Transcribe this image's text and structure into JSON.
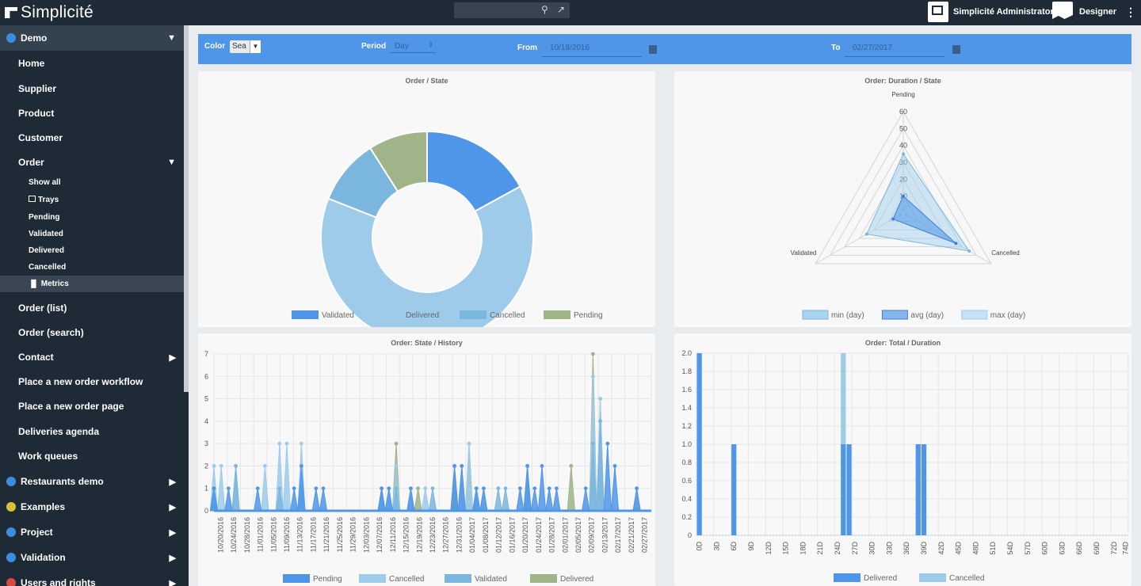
{
  "app": {
    "title": "Simplicité"
  },
  "topbar": {
    "search_placeholder": "",
    "user_name": "Simplicité Administrator",
    "role": "Designer"
  },
  "sidebar": {
    "module": "Demo",
    "items": [
      {
        "label": "Home"
      },
      {
        "label": "Supplier"
      },
      {
        "label": "Product"
      },
      {
        "label": "Customer"
      },
      {
        "label": "Order"
      }
    ],
    "order_sub": [
      {
        "label": "Show all"
      },
      {
        "label": "Trays"
      },
      {
        "label": "Pending"
      },
      {
        "label": "Validated"
      },
      {
        "label": "Delivered"
      },
      {
        "label": "Cancelled"
      },
      {
        "label": "Metrics"
      }
    ],
    "items2": [
      {
        "label": "Order (list)"
      },
      {
        "label": "Order (search)"
      },
      {
        "label": "Contact"
      },
      {
        "label": "Place a new order workflow"
      },
      {
        "label": "Place a new order page"
      },
      {
        "label": "Deliveries agenda"
      },
      {
        "label": "Work queues"
      }
    ],
    "modules": [
      {
        "label": "Restaurants demo",
        "icon": "globe-icon",
        "color": "#3a8fe0"
      },
      {
        "label": "Examples",
        "icon": "flask-icon",
        "color": "#d8c23a"
      },
      {
        "label": "Project",
        "icon": "shield-icon",
        "color": "#3a8fe0"
      },
      {
        "label": "Validation",
        "icon": "checklist-icon",
        "color": "#3a8fe0"
      },
      {
        "label": "Users and rights",
        "icon": "users-icon",
        "color": "#d84a3a"
      }
    ]
  },
  "filters": {
    "color_label": "Color",
    "color_value": "Sea",
    "period_label": "Period",
    "period_value": "Day",
    "from_label": "From",
    "from_value": "10/18/2016",
    "to_label": "To",
    "to_value": "02/27/2017"
  },
  "colors": {
    "validated": "#4f96e8",
    "delivered": "#9ecbea",
    "cancelled": "#7bb6de",
    "pending": "#a0b48a",
    "accent": "#4f96e8"
  },
  "chart_data": [
    {
      "type": "pie",
      "title": "Order / State",
      "categories": [
        "Validated",
        "Delivered",
        "Cancelled",
        "Pending"
      ],
      "values": [
        17,
        64,
        10,
        9
      ]
    },
    {
      "type": "radar",
      "title": "Order: Duration / State",
      "categories": [
        "Pending",
        "Cancelled",
        "Validated"
      ],
      "rlim": [
        0,
        60
      ],
      "ticks": [
        "10",
        "20",
        "30",
        "40",
        "50",
        "60"
      ],
      "series": [
        {
          "name": "min (day)",
          "values": [
            2,
            2,
            2
          ]
        },
        {
          "name": "avg (day)",
          "values": [
            10,
            36,
            7
          ]
        },
        {
          "name": "max (day)",
          "values": [
            35,
            45,
            25
          ]
        }
      ]
    },
    {
      "type": "area",
      "title": "Order: State / History",
      "ylim": [
        0,
        7
      ],
      "yticks": [
        "0",
        "1",
        "2",
        "3",
        "4",
        "5",
        "6",
        "7"
      ],
      "xticks": [
        "10/20/2016",
        "10/24/2016",
        "10/28/2016",
        "11/01/2016",
        "11/05/2016",
        "11/09/2016",
        "11/13/2016",
        "11/17/2016",
        "11/21/2016",
        "11/25/2016",
        "11/29/2016",
        "12/03/2016",
        "12/07/2016",
        "12/11/2016",
        "12/15/2016",
        "12/19/2016",
        "12/23/2016",
        "12/27/2016",
        "12/31/2016",
        "01/04/2017",
        "01/08/2017",
        "01/12/2017",
        "01/16/2017",
        "01/20/2017",
        "01/24/2017",
        "01/28/2017",
        "02/01/2017",
        "02/05/2017",
        "02/09/2017",
        "02/13/2017",
        "02/17/2017",
        "02/21/2017",
        "02/27/2017"
      ],
      "series": [
        {
          "name": "Pending",
          "points": [
            [
              0,
              1
            ],
            [
              2,
              1
            ],
            [
              6,
              1
            ],
            [
              11,
              1
            ],
            [
              12,
              2
            ],
            [
              14,
              1
            ],
            [
              15,
              1
            ],
            [
              23,
              1
            ],
            [
              24,
              1
            ],
            [
              27,
              1
            ],
            [
              33,
              2
            ],
            [
              34,
              2
            ],
            [
              36,
              1
            ],
            [
              37,
              1
            ],
            [
              42,
              1
            ],
            [
              43,
              2
            ],
            [
              44,
              1
            ],
            [
              45,
              2
            ],
            [
              46,
              1
            ],
            [
              47,
              1
            ],
            [
              51,
              1
            ],
            [
              54,
              3
            ],
            [
              55,
              2
            ],
            [
              58,
              1
            ]
          ]
        },
        {
          "name": "Cancelled",
          "points": [
            [
              0,
              2
            ],
            [
              1,
              2
            ],
            [
              3,
              2
            ],
            [
              7,
              2
            ],
            [
              9,
              3
            ],
            [
              10,
              3
            ],
            [
              12,
              3
            ],
            [
              24,
              1
            ],
            [
              25,
              2
            ],
            [
              27,
              1
            ],
            [
              29,
              1
            ],
            [
              34,
              2
            ],
            [
              35,
              3
            ],
            [
              37,
              1
            ],
            [
              52,
              6
            ],
            [
              53,
              5
            ],
            [
              58,
              1
            ]
          ]
        },
        {
          "name": "Validated",
          "points": [
            [
              0,
              1
            ],
            [
              3,
              2
            ],
            [
              9,
              1
            ],
            [
              12,
              1
            ],
            [
              23,
              1
            ],
            [
              25,
              1
            ],
            [
              30,
              1
            ],
            [
              36,
              1
            ],
            [
              39,
              1
            ],
            [
              40,
              1
            ],
            [
              43,
              2
            ],
            [
              52,
              3
            ],
            [
              53,
              4
            ]
          ]
        },
        {
          "name": "Delivered",
          "points": [
            [
              25,
              3
            ],
            [
              28,
              1
            ],
            [
              33,
              2
            ],
            [
              35,
              3
            ],
            [
              49,
              2
            ],
            [
              52,
              7
            ],
            [
              53,
              5
            ]
          ]
        }
      ]
    },
    {
      "type": "bar",
      "title": "Order: Total / Duration",
      "ylim": [
        0,
        2
      ],
      "yticks": [
        "0",
        "0.2",
        "0.4",
        "0.6",
        "0.8",
        "1.0",
        "1.2",
        "1.4",
        "1.6",
        "1.8",
        "2.0"
      ],
      "categories": [
        "0D",
        "3D",
        "6D",
        "9D",
        "12D",
        "15D",
        "18D",
        "21D",
        "24D",
        "27D",
        "30D",
        "33D",
        "36D",
        "39D",
        "42D",
        "45D",
        "48D",
        "51D",
        "54D",
        "57D",
        "60D",
        "63D",
        "66D",
        "69D",
        "72D",
        "74D"
      ],
      "series": [
        {
          "name": "Delivered",
          "points": [
            [
              0,
              2
            ],
            [
              6,
              1
            ],
            [
              25,
              1
            ],
            [
              26,
              1
            ],
            [
              38,
              1
            ],
            [
              39,
              1
            ]
          ]
        },
        {
          "name": "Cancelled",
          "points": [
            [
              25,
              1
            ]
          ]
        }
      ]
    }
  ]
}
